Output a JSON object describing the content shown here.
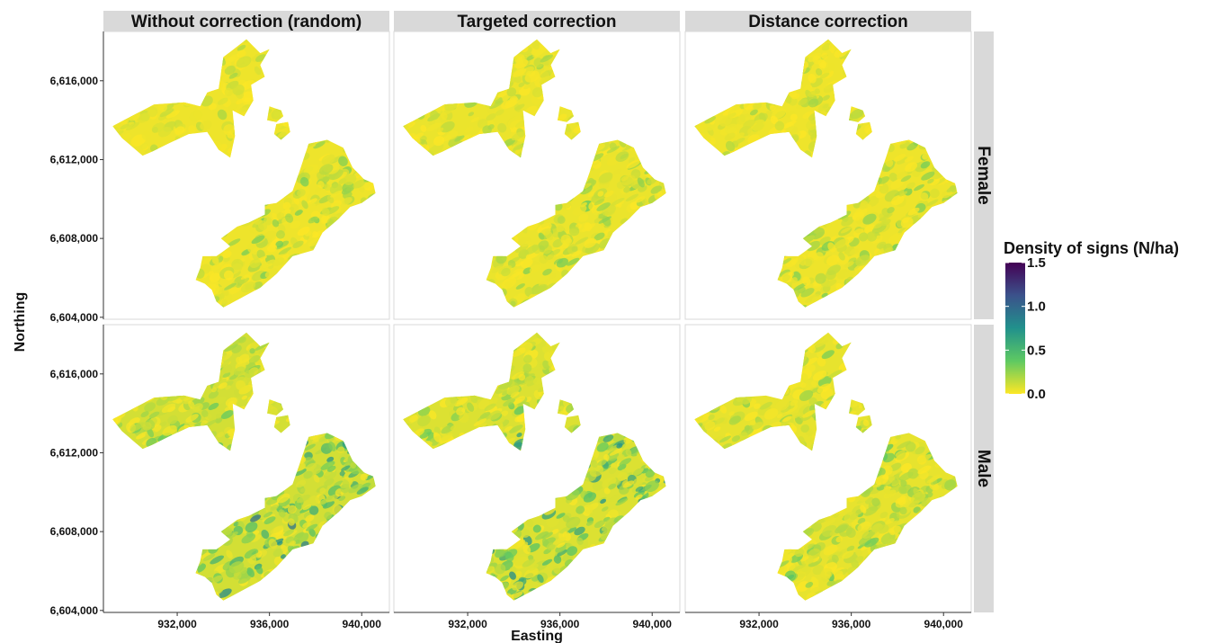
{
  "chart_data": {
    "type": "heatmap",
    "subtype": "faceted choropleth map",
    "columns": [
      "Without correction (random)",
      "Targeted correction",
      "Distance correction"
    ],
    "rows": [
      "Female",
      "Male"
    ],
    "xlabel": "Easting",
    "ylabel": "Northing",
    "x_ticks": [
      932000,
      936000,
      940000
    ],
    "x_tick_labels": [
      "932,000",
      "936,000",
      "940,000"
    ],
    "y_ticks": [
      6604000,
      6608000,
      6612000,
      6616000
    ],
    "y_tick_labels": [
      "6,604,000",
      "6,608,000",
      "6,612,000",
      "6,616,000"
    ],
    "xlim": [
      928800,
      941200
    ],
    "ylim": [
      6603900,
      6618500
    ],
    "legend": {
      "title": "Density of signs (N/ha)",
      "min": 0.0,
      "max": 1.5,
      "ticks": [
        0.0,
        0.5,
        1.0,
        1.5
      ],
      "tick_labels": [
        "0.0",
        "0.5",
        "1.0",
        "1.5"
      ],
      "colormap": [
        "#fde725",
        "#5ec962",
        "#21918c",
        "#3b528b",
        "#440154"
      ],
      "placement": "right"
    },
    "panels": [
      {
        "column": "Without correction (random)",
        "row": "Female",
        "mean_density": 0.1,
        "max_density": 0.3
      },
      {
        "column": "Targeted correction",
        "row": "Female",
        "mean_density": 0.12,
        "max_density": 0.33
      },
      {
        "column": "Distance correction",
        "row": "Female",
        "mean_density": 0.1,
        "max_density": 0.32
      },
      {
        "column": "Without correction (random)",
        "row": "Male",
        "mean_density": 0.28,
        "max_density": 0.6
      },
      {
        "column": "Targeted correction",
        "row": "Male",
        "mean_density": 0.22,
        "max_density": 0.55
      },
      {
        "column": "Distance correction",
        "row": "Male",
        "mean_density": 0.15,
        "max_density": 0.4
      }
    ],
    "study_area": {
      "north_block": [
        [
          929200,
          6613700
        ],
        [
          931000,
          6614800
        ],
        [
          932300,
          6614900
        ],
        [
          933000,
          6614700
        ],
        [
          933300,
          6615400
        ],
        [
          933800,
          6615600
        ],
        [
          934000,
          6617200
        ],
        [
          935000,
          6618100
        ],
        [
          935600,
          6617400
        ],
        [
          936000,
          6617600
        ],
        [
          935600,
          6616800
        ],
        [
          935800,
          6616200
        ],
        [
          935200,
          6615800
        ],
        [
          935300,
          6615000
        ],
        [
          934900,
          6614200
        ],
        [
          934400,
          6614500
        ],
        [
          934500,
          6613200
        ],
        [
          934300,
          6612100
        ],
        [
          933800,
          6612500
        ],
        [
          933300,
          6613400
        ],
        [
          932500,
          6613300
        ],
        [
          931600,
          6612800
        ],
        [
          930900,
          6612400
        ],
        [
          930500,
          6612200
        ],
        [
          929600,
          6613100
        ]
      ],
      "island_a": [
        [
          936000,
          6614700
        ],
        [
          936500,
          6614500
        ],
        [
          936600,
          6614200
        ],
        [
          936300,
          6613900
        ],
        [
          935900,
          6614000
        ]
      ],
      "island_b": [
        [
          936300,
          6613800
        ],
        [
          936800,
          6613900
        ],
        [
          936900,
          6613400
        ],
        [
          936500,
          6613000
        ],
        [
          936200,
          6613300
        ]
      ],
      "south_block": [
        [
          936300,
          6609800
        ],
        [
          937000,
          6610400
        ],
        [
          937300,
          6611400
        ],
        [
          937700,
          6612800
        ],
        [
          938500,
          6613000
        ],
        [
          939200,
          6612600
        ],
        [
          939600,
          6611600
        ],
        [
          940100,
          6611000
        ],
        [
          940500,
          6610800
        ],
        [
          940600,
          6610300
        ],
        [
          940000,
          6609800
        ],
        [
          939500,
          6609600
        ],
        [
          939000,
          6609000
        ],
        [
          938300,
          6608300
        ],
        [
          937900,
          6607400
        ],
        [
          937000,
          6607100
        ],
        [
          936300,
          6606200
        ],
        [
          935600,
          6605500
        ],
        [
          934800,
          6605000
        ],
        [
          934000,
          6604500
        ],
        [
          933700,
          6604800
        ],
        [
          933500,
          6605400
        ],
        [
          933200,
          6605700
        ],
        [
          932800,
          6605900
        ],
        [
          933000,
          6606500
        ],
        [
          933100,
          6607100
        ],
        [
          933700,
          6607100
        ],
        [
          934300,
          6607600
        ],
        [
          933900,
          6608000
        ],
        [
          934600,
          6608600
        ],
        [
          935100,
          6608800
        ],
        [
          935800,
          6609200
        ],
        [
          935800,
          6609700
        ]
      ]
    }
  }
}
